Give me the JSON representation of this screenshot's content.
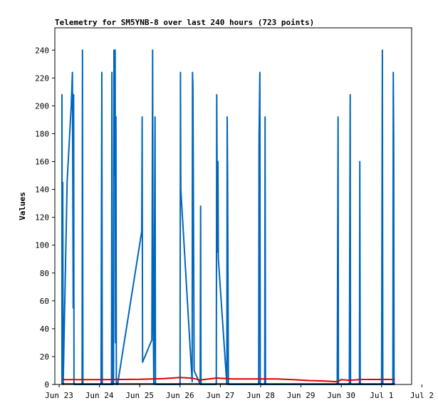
{
  "chart_data": {
    "type": "line",
    "title": "Telemetry for SM5YNB-8 over last 240 hours (723 points)",
    "xlabel": "",
    "ylabel": "Values",
    "x_tick_labels": [
      "Jun 23",
      "Jun 24",
      "Jun 25",
      "Jun 26",
      "Jun 27",
      "Jun 28",
      "Jun 29",
      "Jun 30",
      "Jul 1",
      "Jul 2"
    ],
    "y_ticks": [
      0,
      20,
      40,
      60,
      80,
      100,
      120,
      140,
      160,
      180,
      200,
      220,
      240
    ],
    "xlim": [
      0,
      9
    ],
    "ylim": [
      0,
      256
    ],
    "grid": false,
    "series": [
      {
        "name": "",
        "color": "#0066bb",
        "points": [
          [
            0.07,
            0
          ],
          [
            0.07,
            208
          ],
          [
            0.08,
            2
          ],
          [
            0.09,
            145
          ],
          [
            0.1,
            0
          ],
          [
            0.2,
            146
          ],
          [
            0.3,
            200
          ],
          [
            0.33,
            224
          ],
          [
            0.35,
            55
          ],
          [
            0.36,
            208
          ],
          [
            0.37,
            0
          ],
          [
            0.39,
            0
          ],
          [
            0.57,
            0
          ],
          [
            0.58,
            240
          ],
          [
            0.59,
            0
          ],
          [
            1.04,
            0
          ],
          [
            1.05,
            112
          ],
          [
            1.06,
            224
          ],
          [
            1.07,
            0
          ],
          [
            1.3,
            0
          ],
          [
            1.31,
            224
          ],
          [
            1.32,
            0
          ],
          [
            1.35,
            0
          ],
          [
            1.36,
            240
          ],
          [
            1.37,
            150
          ],
          [
            1.38,
            172
          ],
          [
            1.39,
            240
          ],
          [
            1.4,
            30
          ],
          [
            1.41,
            192
          ],
          [
            1.42,
            0
          ],
          [
            1.45,
            0
          ],
          [
            2.05,
            110
          ],
          [
            2.06,
            192
          ],
          [
            2.07,
            16
          ],
          [
            2.3,
            32
          ],
          [
            2.31,
            120
          ],
          [
            2.32,
            240
          ],
          [
            2.33,
            60
          ],
          [
            2.35,
            0
          ],
          [
            2.38,
            192
          ],
          [
            2.39,
            0
          ],
          [
            3.0,
            0
          ],
          [
            3.01,
            224
          ],
          [
            3.02,
            140
          ],
          [
            3.3,
            2
          ],
          [
            3.31,
            224
          ],
          [
            3.32,
            214
          ],
          [
            3.35,
            10
          ],
          [
            3.5,
            0
          ],
          [
            3.51,
            128
          ],
          [
            3.52,
            0
          ],
          [
            3.9,
            0
          ],
          [
            3.91,
            208
          ],
          [
            3.93,
            95
          ],
          [
            3.94,
            160
          ],
          [
            3.95,
            90
          ],
          [
            4.16,
            0
          ],
          [
            4.17,
            192
          ],
          [
            4.18,
            145
          ],
          [
            4.2,
            0
          ],
          [
            4.95,
            0
          ],
          [
            4.96,
            176
          ],
          [
            4.98,
            224
          ],
          [
            4.99,
            0
          ],
          [
            5.1,
            0
          ],
          [
            5.11,
            192
          ],
          [
            5.12,
            0
          ],
          [
            6.9,
            0
          ],
          [
            6.92,
            192
          ],
          [
            6.93,
            0
          ],
          [
            7.2,
            0
          ],
          [
            7.22,
            208
          ],
          [
            7.23,
            0
          ],
          [
            7.45,
            0
          ],
          [
            7.46,
            160
          ],
          [
            7.47,
            0
          ],
          [
            8.0,
            0
          ],
          [
            8.02,
            240
          ],
          [
            8.03,
            0
          ],
          [
            8.28,
            0
          ],
          [
            8.29,
            224
          ],
          [
            8.3,
            176
          ],
          [
            8.31,
            0
          ],
          [
            8.33,
            0
          ]
        ]
      },
      {
        "name": "",
        "color": "#e00000",
        "points": [
          [
            0.07,
            3.5
          ],
          [
            1.0,
            3.5
          ],
          [
            2.0,
            3.7
          ],
          [
            2.6,
            4.2
          ],
          [
            3.0,
            5.0
          ],
          [
            3.3,
            4.5
          ],
          [
            3.5,
            3.2
          ],
          [
            3.9,
            4.6
          ],
          [
            4.3,
            4.0
          ],
          [
            5.0,
            4.0
          ],
          [
            5.4,
            4.0
          ],
          [
            5.8,
            3.5
          ],
          [
            6.2,
            2.8
          ],
          [
            6.6,
            2.4
          ],
          [
            6.9,
            2.0
          ],
          [
            7.0,
            3.5
          ],
          [
            7.2,
            3.0
          ],
          [
            7.5,
            3.6
          ],
          [
            8.33,
            3.6
          ]
        ]
      },
      {
        "name": "",
        "color": "#000000",
        "points": [
          [
            0.07,
            0.3
          ],
          [
            8.33,
            0.3
          ]
        ]
      }
    ]
  }
}
